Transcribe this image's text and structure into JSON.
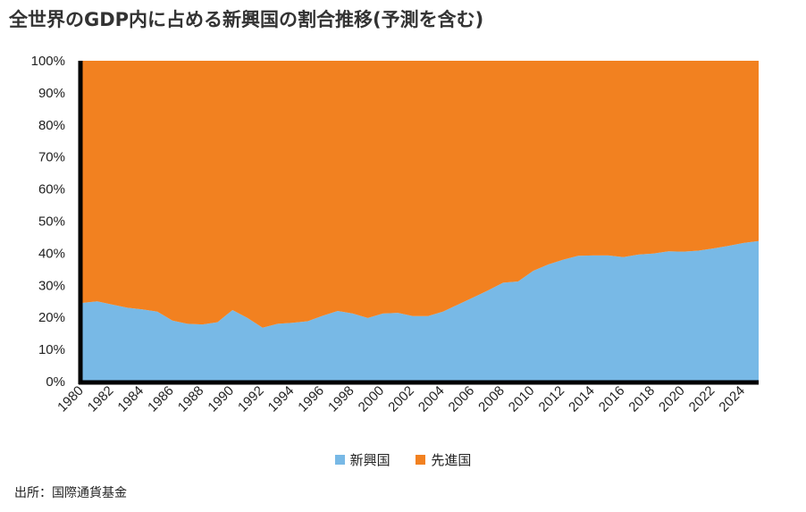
{
  "chart_data": {
    "type": "area",
    "stacked": true,
    "normalized": true,
    "title": "全世界のGDP内に占める新興国の割合推移(予測を含む)",
    "x": [
      1980,
      1981,
      1982,
      1983,
      1984,
      1985,
      1986,
      1987,
      1988,
      1989,
      1990,
      1991,
      1992,
      1993,
      1994,
      1995,
      1996,
      1997,
      1998,
      1999,
      2000,
      2001,
      2002,
      2003,
      2004,
      2005,
      2006,
      2007,
      2008,
      2009,
      2010,
      2011,
      2012,
      2013,
      2014,
      2015,
      2016,
      2017,
      2018,
      2019,
      2020,
      2021,
      2022,
      2023,
      2024,
      2025
    ],
    "xticks": [
      "1980",
      "1982",
      "1984",
      "1986",
      "1988",
      "1990",
      "1992",
      "1994",
      "1996",
      "1998",
      "2000",
      "2002",
      "2004",
      "2006",
      "2008",
      "2010",
      "2012",
      "2014",
      "2016",
      "2018",
      "2020",
      "2022",
      "2024"
    ],
    "yticks": [
      "0%",
      "10%",
      "20%",
      "30%",
      "40%",
      "50%",
      "60%",
      "70%",
      "80%",
      "90%",
      "100%"
    ],
    "ylim": [
      0,
      100
    ],
    "series": [
      {
        "name": "新興国",
        "color": "#78b9e6",
        "values": [
          24.5,
          25.0,
          24.0,
          23.0,
          22.5,
          21.8,
          19.0,
          18.0,
          17.8,
          18.5,
          22.3,
          19.8,
          16.8,
          18.0,
          18.3,
          18.8,
          20.5,
          22.0,
          21.2,
          19.8,
          21.2,
          21.4,
          20.4,
          20.4,
          21.8,
          24.0,
          26.2,
          28.4,
          30.8,
          31.2,
          34.5,
          36.5,
          38.0,
          39.2,
          39.3,
          39.3,
          38.8,
          39.6,
          39.9,
          40.6,
          40.5,
          40.8,
          41.5,
          42.3,
          43.2,
          43.8
        ]
      },
      {
        "name": "先進国",
        "color": "#f28120",
        "values": [
          75.5,
          75.0,
          76.0,
          77.0,
          77.5,
          78.2,
          81.0,
          82.0,
          82.2,
          81.5,
          77.7,
          80.2,
          83.2,
          82.0,
          81.7,
          81.2,
          79.5,
          78.0,
          78.8,
          80.2,
          78.8,
          78.6,
          79.6,
          79.6,
          78.2,
          76.0,
          73.8,
          71.6,
          69.2,
          68.8,
          65.5,
          63.5,
          62.0,
          60.8,
          60.7,
          60.7,
          61.2,
          60.4,
          60.1,
          59.4,
          59.5,
          59.2,
          58.5,
          57.7,
          56.8,
          56.2
        ]
      }
    ],
    "legend": "bottom"
  },
  "source": "出所：国際通貨基金"
}
